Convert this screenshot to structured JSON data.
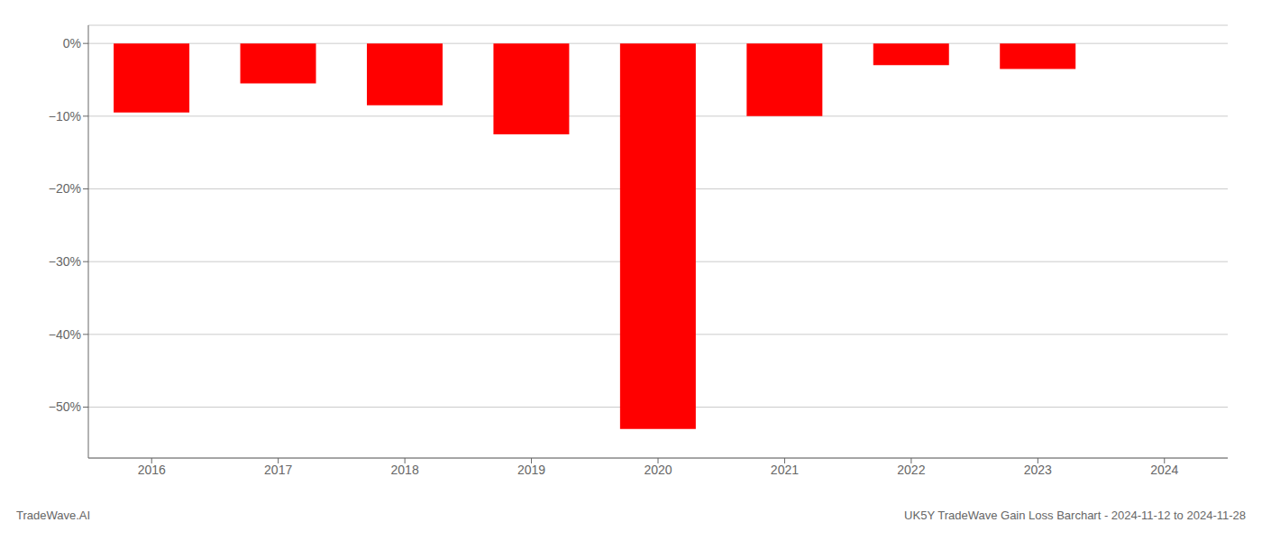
{
  "chart_data": {
    "type": "bar",
    "categories": [
      "2016",
      "2017",
      "2018",
      "2019",
      "2020",
      "2021",
      "2022",
      "2023",
      "2024"
    ],
    "values": [
      -9.5,
      -5.5,
      -8.5,
      -12.5,
      -53.0,
      -10.0,
      -3.0,
      -3.5,
      0.0
    ],
    "color": "#ff0000",
    "ylim": [
      -57,
      2.5
    ],
    "yticks": [
      {
        "value": 0,
        "label": "0%"
      },
      {
        "value": -10,
        "label": "−10%"
      },
      {
        "value": -20,
        "label": "−20%"
      },
      {
        "value": -30,
        "label": "−30%"
      },
      {
        "value": -40,
        "label": "−40%"
      },
      {
        "value": -50,
        "label": "−50%"
      }
    ],
    "grid": true,
    "annotations": [
      "TradeWave.AI",
      "UK5Y TradeWave Gain Loss Barchart - 2024-11-12 to 2024-11-28"
    ]
  }
}
